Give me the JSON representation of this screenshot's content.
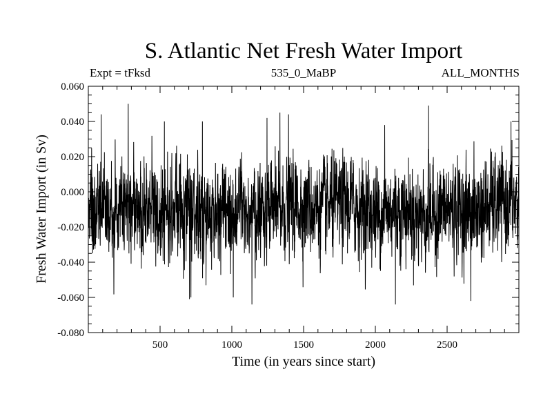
{
  "chart_data": {
    "type": "line",
    "title": "S. Atlantic Net Fresh Water Import",
    "subtitle_left": "Expt = tFksd",
    "subtitle_center": "535_0_MaBP",
    "subtitle_right": "ALL_MONTHS",
    "xlabel": "Time (in years since start)",
    "ylabel": "Fresh Water Import (in Sv)",
    "xlim": [
      0,
      3000
    ],
    "ylim": [
      -0.08,
      0.06
    ],
    "x_ticks": [
      500,
      1000,
      1500,
      2000,
      2500
    ],
    "x_tick_labels": [
      "500",
      "1000",
      "1500",
      "2000",
      "2500"
    ],
    "y_ticks": [
      -0.08,
      -0.06,
      -0.04,
      -0.02,
      0.0,
      0.02,
      0.04,
      0.06
    ],
    "y_tick_labels": [
      "-0.080",
      "-0.060",
      "-0.040",
      "-0.020",
      "0.000",
      "0.020",
      "0.040",
      "0.060"
    ],
    "series": [
      {
        "name": "net fresh water import",
        "description": "annual series, ~3000 points, noisy around -0.010 Sv",
        "approx_mean": -0.01,
        "approx_min": -0.064,
        "approx_max": 0.05,
        "x_start": 1,
        "x_end": 3000,
        "n_points": 3000,
        "notable_peaks": [
          {
            "x": 278,
            "y": 0.05
          },
          {
            "x": 2370,
            "y": 0.049
          },
          {
            "x": 1140,
            "y": -0.064
          },
          {
            "x": 2140,
            "y": -0.064
          },
          {
            "x": 2665,
            "y": -0.062
          },
          {
            "x": 705,
            "y": -0.061
          },
          {
            "x": 1010,
            "y": -0.06
          },
          {
            "x": 90,
            "y": 0.044
          },
          {
            "x": 1335,
            "y": 0.045
          },
          {
            "x": 1395,
            "y": 0.044
          },
          {
            "x": 1245,
            "y": 0.042
          },
          {
            "x": 795,
            "y": 0.04
          },
          {
            "x": 2065,
            "y": 0.038
          },
          {
            "x": 530,
            "y": 0.04
          },
          {
            "x": 2945,
            "y": 0.04
          }
        ]
      }
    ]
  }
}
